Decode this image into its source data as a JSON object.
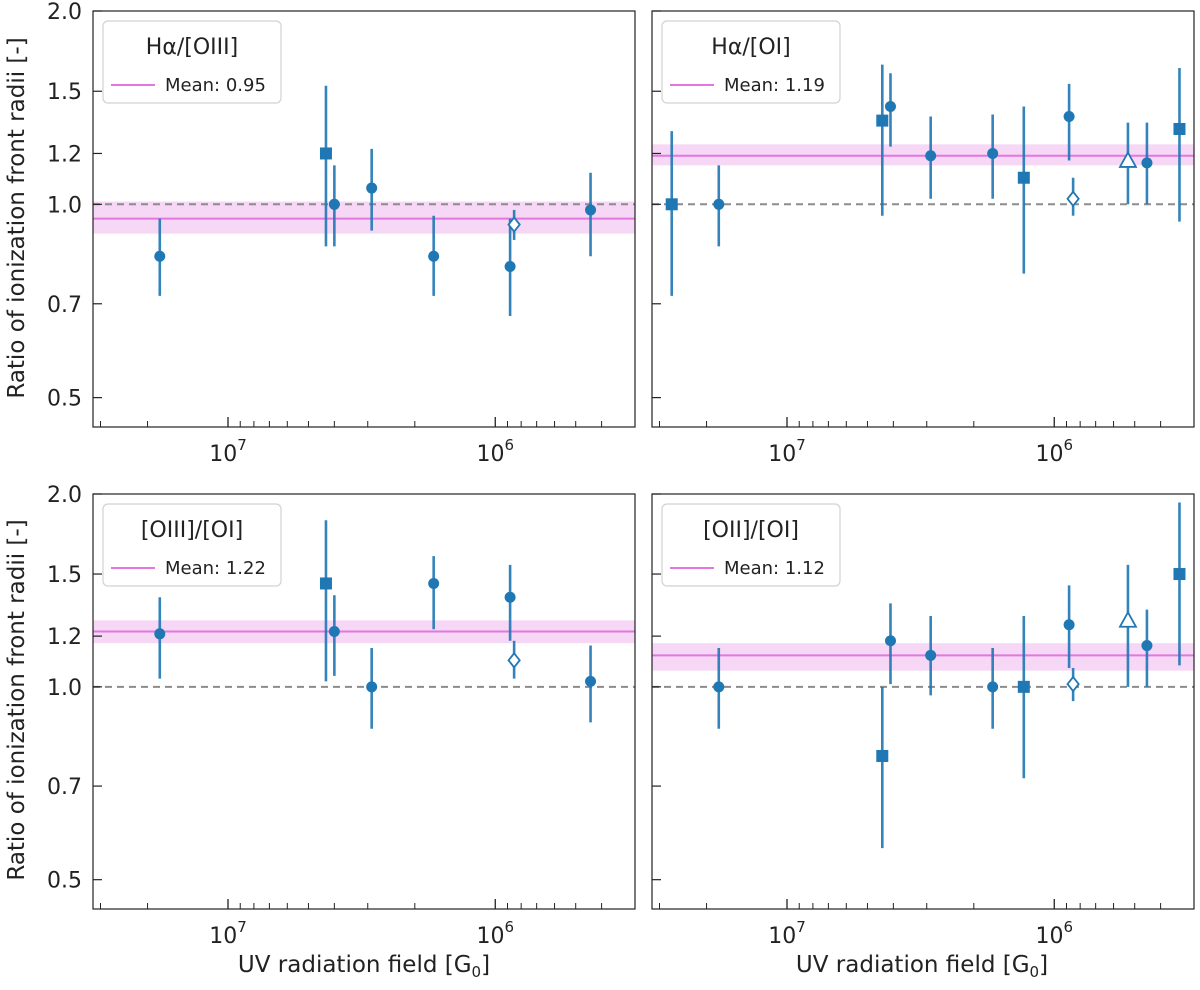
{
  "colors": {
    "data": "#1f77b4",
    "mean": "#e377e0",
    "band": "#f4cdf2",
    "reference": "#8c8c8c",
    "axis": "#222222"
  },
  "shared": {
    "ylabel": "Ratio of ionization front radii [-]",
    "xlabel": "UV radiation field [G",
    "xlabel_sub": "0",
    "xlabel_close": "]",
    "yticks": [
      "2.0",
      "1.5",
      "1.2",
      "1.0",
      "0.7",
      "0.5"
    ],
    "xticks": [
      {
        "base": "10",
        "exp": "7"
      },
      {
        "base": "10",
        "exp": "6"
      }
    ]
  },
  "chart_data": [
    {
      "type": "scatter",
      "title": "Hα/[OIII]",
      "legend": "Mean: 0.95",
      "mean": 0.95,
      "band": [
        0.9,
        1.01
      ],
      "reference": 1.0,
      "xlim": [
        32000000.0,
        300000.0
      ],
      "xscale": "log",
      "xinverted": true,
      "ylim": [
        0.45,
        2.0
      ],
      "yscale": "log",
      "points": [
        {
          "x": 18000000.0,
          "y": 0.83,
          "lo": 0.72,
          "hi": 0.95,
          "marker": "circle"
        },
        {
          "x": 4300000.0,
          "y": 1.2,
          "lo": 0.86,
          "hi": 1.53,
          "marker": "square"
        },
        {
          "x": 4000000.0,
          "y": 1.0,
          "lo": 0.86,
          "hi": 1.15,
          "marker": "circle"
        },
        {
          "x": 2900000.0,
          "y": 1.06,
          "lo": 0.91,
          "hi": 1.22,
          "marker": "circle"
        },
        {
          "x": 1700000.0,
          "y": 0.83,
          "lo": 0.72,
          "hi": 0.96,
          "marker": "circle"
        },
        {
          "x": 880000.0,
          "y": 0.8,
          "lo": 0.67,
          "hi": 0.95,
          "marker": "circle"
        },
        {
          "x": 850000.0,
          "y": 0.93,
          "lo": 0.88,
          "hi": 0.98,
          "marker": "diamond-open"
        },
        {
          "x": 440000.0,
          "y": 0.98,
          "lo": 0.83,
          "hi": 1.12,
          "marker": "circle"
        }
      ]
    },
    {
      "type": "scatter",
      "title": "Hα/[OI]",
      "legend": "Mean: 1.19",
      "mean": 1.19,
      "band": [
        1.15,
        1.24
      ],
      "reference": 1.0,
      "xlim": [
        32000000.0,
        300000.0
      ],
      "xscale": "log",
      "xinverted": true,
      "ylim": [
        0.45,
        2.0
      ],
      "yscale": "log",
      "points": [
        {
          "x": 27000000.0,
          "y": 1.0,
          "lo": 0.72,
          "hi": 1.3,
          "marker": "square"
        },
        {
          "x": 18000000.0,
          "y": 1.0,
          "lo": 0.86,
          "hi": 1.15,
          "marker": "circle"
        },
        {
          "x": 4400000.0,
          "y": 1.35,
          "lo": 0.96,
          "hi": 1.65,
          "marker": "square"
        },
        {
          "x": 4100000.0,
          "y": 1.42,
          "lo": 1.23,
          "hi": 1.6,
          "marker": "circle"
        },
        {
          "x": 2900000.0,
          "y": 1.19,
          "lo": 1.02,
          "hi": 1.37,
          "marker": "circle"
        },
        {
          "x": 1700000.0,
          "y": 1.2,
          "lo": 1.02,
          "hi": 1.38,
          "marker": "circle"
        },
        {
          "x": 1300000.0,
          "y": 1.1,
          "lo": 0.78,
          "hi": 1.42,
          "marker": "square"
        },
        {
          "x": 880000.0,
          "y": 1.37,
          "lo": 1.17,
          "hi": 1.54,
          "marker": "circle"
        },
        {
          "x": 850000.0,
          "y": 1.02,
          "lo": 0.96,
          "hi": 1.1,
          "marker": "diamond-open"
        },
        {
          "x": 530000.0,
          "y": 1.17,
          "lo": 1.0,
          "hi": 1.34,
          "marker": "triangle-open"
        },
        {
          "x": 450000.0,
          "y": 1.16,
          "lo": 1.0,
          "hi": 1.34,
          "marker": "circle"
        },
        {
          "x": 340000.0,
          "y": 1.31,
          "lo": 0.94,
          "hi": 1.63,
          "marker": "square"
        }
      ]
    },
    {
      "type": "scatter",
      "title": "[OIII]/[OI]",
      "legend": "Mean: 1.22",
      "mean": 1.22,
      "band": [
        1.17,
        1.27
      ],
      "reference": 1.0,
      "xlim": [
        32000000.0,
        300000.0
      ],
      "xscale": "log",
      "xinverted": true,
      "ylim": [
        0.45,
        2.0
      ],
      "yscale": "log",
      "points": [
        {
          "x": 18000000.0,
          "y": 1.21,
          "lo": 1.03,
          "hi": 1.38,
          "marker": "circle"
        },
        {
          "x": 4300000.0,
          "y": 1.45,
          "lo": 1.02,
          "hi": 1.82,
          "marker": "square"
        },
        {
          "x": 4000000.0,
          "y": 1.22,
          "lo": 1.04,
          "hi": 1.39,
          "marker": "circle"
        },
        {
          "x": 2900000.0,
          "y": 1.0,
          "lo": 0.86,
          "hi": 1.15,
          "marker": "circle"
        },
        {
          "x": 1700000.0,
          "y": 1.45,
          "lo": 1.23,
          "hi": 1.6,
          "marker": "circle"
        },
        {
          "x": 880000.0,
          "y": 1.38,
          "lo": 1.18,
          "hi": 1.55,
          "marker": "circle"
        },
        {
          "x": 850000.0,
          "y": 1.1,
          "lo": 1.03,
          "hi": 1.18,
          "marker": "diamond-open"
        },
        {
          "x": 440000.0,
          "y": 1.02,
          "lo": 0.88,
          "hi": 1.16,
          "marker": "circle"
        }
      ]
    },
    {
      "type": "scatter",
      "title": "[OII]/[OI]",
      "legend": "Mean: 1.12",
      "mean": 1.12,
      "band": [
        1.06,
        1.17
      ],
      "reference": 1.0,
      "xlim": [
        32000000.0,
        300000.0
      ],
      "xscale": "log",
      "xinverted": true,
      "ylim": [
        0.45,
        2.0
      ],
      "yscale": "log",
      "points": [
        {
          "x": 18000000.0,
          "y": 1.0,
          "lo": 0.86,
          "hi": 1.15,
          "marker": "circle"
        },
        {
          "x": 4400000.0,
          "y": 0.78,
          "lo": 0.56,
          "hi": 1.0,
          "marker": "square"
        },
        {
          "x": 4100000.0,
          "y": 1.18,
          "lo": 1.01,
          "hi": 1.35,
          "marker": "circle"
        },
        {
          "x": 2900000.0,
          "y": 1.12,
          "lo": 0.97,
          "hi": 1.29,
          "marker": "circle"
        },
        {
          "x": 1700000.0,
          "y": 1.0,
          "lo": 0.86,
          "hi": 1.15,
          "marker": "circle"
        },
        {
          "x": 1300000.0,
          "y": 1.0,
          "lo": 0.72,
          "hi": 1.29,
          "marker": "square"
        },
        {
          "x": 880000.0,
          "y": 1.25,
          "lo": 1.07,
          "hi": 1.44,
          "marker": "circle"
        },
        {
          "x": 850000.0,
          "y": 1.01,
          "lo": 0.95,
          "hi": 1.07,
          "marker": "diamond-open"
        },
        {
          "x": 530000.0,
          "y": 1.27,
          "lo": 1.0,
          "hi": 1.55,
          "marker": "triangle-open"
        },
        {
          "x": 450000.0,
          "y": 1.16,
          "lo": 1.0,
          "hi": 1.32,
          "marker": "circle"
        },
        {
          "x": 340000.0,
          "y": 1.5,
          "lo": 1.08,
          "hi": 1.94,
          "marker": "square"
        }
      ]
    }
  ]
}
